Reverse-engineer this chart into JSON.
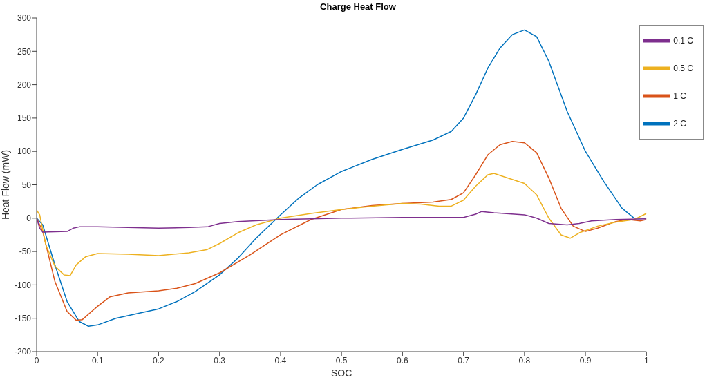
{
  "chart_data": {
    "type": "line",
    "title": "Charge Heat Flow",
    "xlabel": "SOC",
    "ylabel": "Heat Flow (mW)",
    "xlim": [
      0,
      1
    ],
    "xticks": [
      0,
      0.1,
      0.2,
      0.3,
      0.4,
      0.5,
      0.6,
      0.7,
      0.8,
      0.9,
      1
    ],
    "ylim": [
      -200,
      300
    ],
    "yticks": [
      -200,
      -150,
      -100,
      -50,
      0,
      50,
      100,
      150,
      200,
      250,
      300
    ],
    "grid": false,
    "legend": "top right",
    "marker": "none",
    "line_style": "solid",
    "series": [
      {
        "name": "2 C",
        "color": "#0072bd",
        "x": [
          0,
          0.01,
          0.03,
          0.05,
          0.07,
          0.085,
          0.1,
          0.13,
          0.17,
          0.2,
          0.23,
          0.26,
          0.3,
          0.33,
          0.36,
          0.4,
          0.43,
          0.46,
          0.5,
          0.55,
          0.6,
          0.65,
          0.68,
          0.7,
          0.72,
          0.74,
          0.76,
          0.78,
          0.8,
          0.82,
          0.84,
          0.85,
          0.87,
          0.9,
          0.93,
          0.96,
          0.98,
          1
        ],
        "values": [
          0,
          -10,
          -70,
          -125,
          -155,
          -162,
          -160,
          -150,
          -142,
          -136,
          -125,
          -110,
          -85,
          -60,
          -30,
          5,
          30,
          50,
          70,
          88,
          103,
          117,
          130,
          150,
          185,
          225,
          255,
          275,
          282,
          272,
          235,
          210,
          160,
          100,
          55,
          15,
          0,
          0
        ]
      },
      {
        "name": "1 C",
        "color": "#d95319",
        "x": [
          0,
          0.01,
          0.03,
          0.05,
          0.065,
          0.075,
          0.09,
          0.1,
          0.12,
          0.15,
          0.2,
          0.23,
          0.26,
          0.3,
          0.35,
          0.4,
          0.45,
          0.5,
          0.55,
          0.6,
          0.65,
          0.68,
          0.7,
          0.72,
          0.74,
          0.76,
          0.78,
          0.8,
          0.82,
          0.84,
          0.86,
          0.88,
          0.9,
          0.92,
          0.95,
          0.97,
          0.99,
          1
        ],
        "values": [
          0,
          -20,
          -95,
          -140,
          -153,
          -152,
          -140,
          -132,
          -118,
          -112,
          -109,
          -105,
          -98,
          -82,
          -55,
          -25,
          -2,
          13,
          19,
          22,
          24,
          28,
          38,
          65,
          95,
          110,
          115,
          113,
          98,
          60,
          15,
          -12,
          -20,
          -15,
          -5,
          -2,
          -4,
          -2
        ]
      },
      {
        "name": "0.5 C",
        "color": "#edb120",
        "x": [
          0,
          0.005,
          0.015,
          0.03,
          0.045,
          0.055,
          0.065,
          0.08,
          0.1,
          0.15,
          0.2,
          0.25,
          0.28,
          0.3,
          0.33,
          0.36,
          0.4,
          0.45,
          0.5,
          0.55,
          0.6,
          0.63,
          0.66,
          0.68,
          0.7,
          0.72,
          0.74,
          0.75,
          0.78,
          0.8,
          0.82,
          0.84,
          0.86,
          0.875,
          0.89,
          0.92,
          0.95,
          0.98,
          1
        ],
        "values": [
          12,
          5,
          -40,
          -72,
          -85,
          -86,
          -70,
          -58,
          -53,
          -54,
          -56,
          -52,
          -47,
          -38,
          -22,
          -10,
          0,
          7,
          13,
          18,
          22,
          21,
          18,
          18,
          27,
          48,
          65,
          67,
          58,
          52,
          35,
          0,
          -25,
          -30,
          -22,
          -12,
          -6,
          -2,
          7
        ]
      },
      {
        "name": "0.1 C",
        "color": "#7e2f8e",
        "x": [
          0,
          0.005,
          0.01,
          0.05,
          0.06,
          0.07,
          0.1,
          0.15,
          0.2,
          0.25,
          0.28,
          0.3,
          0.33,
          0.4,
          0.5,
          0.6,
          0.65,
          0.7,
          0.72,
          0.73,
          0.75,
          0.8,
          0.82,
          0.84,
          0.87,
          0.89,
          0.91,
          0.95,
          1
        ],
        "values": [
          0,
          -15,
          -21,
          -20,
          -15,
          -13,
          -13,
          -14,
          -15,
          -14,
          -13,
          -8,
          -5,
          -2,
          0,
          1,
          1,
          1,
          6,
          10,
          8,
          5,
          0,
          -8,
          -10,
          -8,
          -4,
          -2,
          -1
        ]
      }
    ]
  }
}
